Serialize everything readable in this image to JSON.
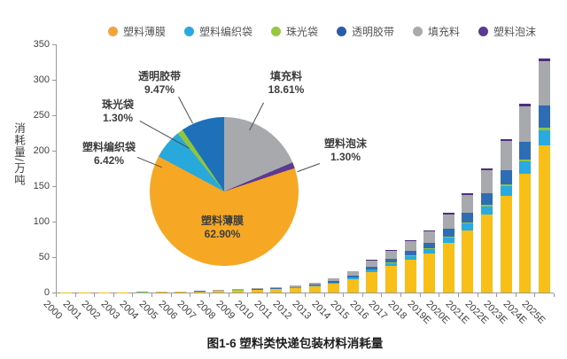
{
  "caption": "图1-6 塑料类快递包装材料消耗量",
  "legend": {
    "items": [
      {
        "label": "塑料薄膜",
        "color": "#F2A33C"
      },
      {
        "label": "塑料编织袋",
        "color": "#2BA9DF"
      },
      {
        "label": "珠光袋",
        "color": "#97C83E"
      },
      {
        "label": "透明胶带",
        "color": "#2A5CAA"
      },
      {
        "label": "填充料",
        "color": "#A8AAAD"
      },
      {
        "label": "塑料泡沫",
        "color": "#5C3A92"
      }
    ]
  },
  "chart_data": [
    {
      "type": "bar",
      "stacked": true,
      "title": "",
      "xlabel": "",
      "ylabel": "消耗量/万吨",
      "ylim": [
        0,
        350
      ],
      "yticks": [
        0,
        50,
        100,
        150,
        200,
        250,
        300,
        350
      ],
      "grid": false,
      "legend_position": "top",
      "categories": [
        "2000",
        "2001",
        "2002",
        "2003",
        "2004",
        "2005",
        "2006",
        "2007",
        "2008",
        "2009",
        "2010",
        "2011",
        "2012",
        "2013",
        "2014",
        "2015",
        "2016",
        "2017",
        "2018",
        "2019E",
        "2020E",
        "2021E",
        "2022E",
        "2023E",
        "2024E",
        "2025E"
      ],
      "totals": [
        0.2,
        0.3,
        0.5,
        0.6,
        0.9,
        1.2,
        1.8,
        2.5,
        3.5,
        4.5,
        6,
        7.5,
        10,
        14,
        20,
        30,
        46,
        60,
        74,
        88,
        112,
        140,
        175,
        216,
        266,
        330
      ],
      "series": [
        {
          "name": "塑料薄膜",
          "color": "#F7BF17",
          "values": [
            0.13,
            0.19,
            0.31,
            0.38,
            0.57,
            0.75,
            1.13,
            1.57,
            2.2,
            2.83,
            3.77,
            4.72,
            6.29,
            8.81,
            12.58,
            18.87,
            28.93,
            37.74,
            46.55,
            55.35,
            70.45,
            88.06,
            110.08,
            135.86,
            167.31,
            207.57
          ]
        },
        {
          "name": "塑料编织袋",
          "color": "#29ABE2",
          "values": [
            0.01,
            0.02,
            0.03,
            0.04,
            0.06,
            0.08,
            0.12,
            0.16,
            0.22,
            0.29,
            0.39,
            0.48,
            0.64,
            0.9,
            1.28,
            1.93,
            2.95,
            3.85,
            4.75,
            5.65,
            7.19,
            8.99,
            11.24,
            13.87,
            17.08,
            21.19
          ]
        },
        {
          "name": "珠光袋",
          "color": "#8FC640",
          "values": [
            0.0,
            0.0,
            0.01,
            0.01,
            0.01,
            0.02,
            0.02,
            0.03,
            0.05,
            0.06,
            0.08,
            0.1,
            0.13,
            0.18,
            0.26,
            0.39,
            0.6,
            0.78,
            0.96,
            1.14,
            1.46,
            1.82,
            2.28,
            2.81,
            3.46,
            4.29
          ]
        },
        {
          "name": "透明胶带",
          "color": "#2E6DB4",
          "values": [
            0.02,
            0.03,
            0.05,
            0.06,
            0.09,
            0.11,
            0.17,
            0.24,
            0.33,
            0.43,
            0.57,
            0.71,
            0.95,
            1.33,
            1.89,
            2.84,
            4.36,
            5.68,
            7.01,
            8.33,
            10.61,
            13.26,
            16.57,
            20.46,
            25.19,
            31.25
          ]
        },
        {
          "name": "填充料",
          "color": "#A7A9AC",
          "values": [
            0.04,
            0.06,
            0.09,
            0.11,
            0.17,
            0.22,
            0.33,
            0.47,
            0.65,
            0.84,
            1.12,
            1.4,
            1.86,
            2.61,
            3.72,
            5.58,
            8.56,
            11.17,
            13.77,
            16.38,
            20.84,
            26.05,
            32.57,
            40.2,
            49.5,
            61.41
          ]
        },
        {
          "name": "塑料泡沫",
          "color": "#4F2D7F",
          "values": [
            0.0,
            0.0,
            0.01,
            0.01,
            0.01,
            0.02,
            0.02,
            0.03,
            0.05,
            0.06,
            0.08,
            0.1,
            0.13,
            0.18,
            0.26,
            0.39,
            0.6,
            0.78,
            0.96,
            1.14,
            1.46,
            1.82,
            2.28,
            2.81,
            3.46,
            4.29
          ]
        }
      ]
    },
    {
      "type": "pie",
      "start_angle": "12-o-clock",
      "direction": "clockwise",
      "slices": [
        {
          "label": "填充料",
          "pct": 18.61,
          "pct_label": "18.61%",
          "color": "#A7A9AC"
        },
        {
          "label": "塑料泡沫",
          "pct": 1.3,
          "pct_label": "1.30%",
          "color": "#5C3A92"
        },
        {
          "label": "塑料薄膜",
          "pct": 62.9,
          "pct_label": "62.90%",
          "color": "#F6A825"
        },
        {
          "label": "塑料编织袋",
          "pct": 6.42,
          "pct_label": "6.42%",
          "color": "#29A8DC"
        },
        {
          "label": "珠光袋",
          "pct": 1.3,
          "pct_label": "1.30%",
          "color": "#8FC640"
        },
        {
          "label": "透明胶带",
          "pct": 9.47,
          "pct_label": "9.47%",
          "color": "#1E70B8"
        }
      ]
    }
  ]
}
